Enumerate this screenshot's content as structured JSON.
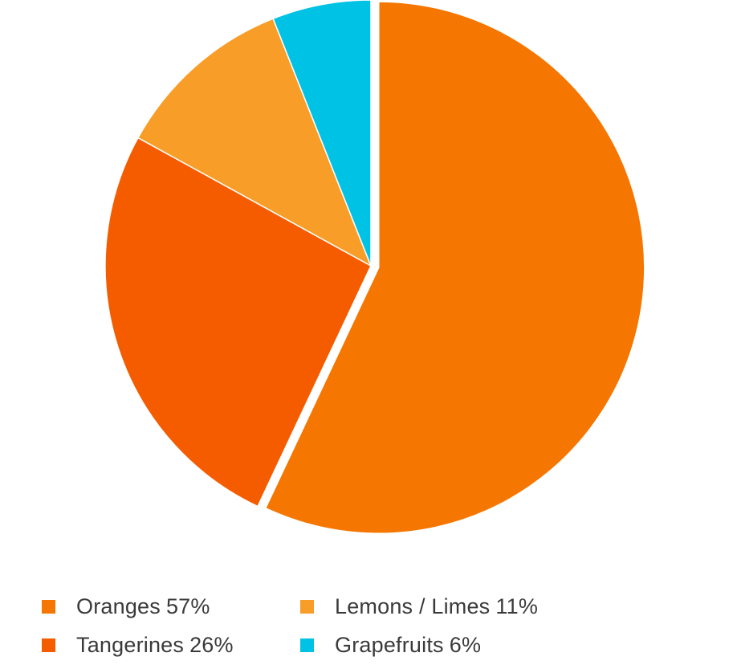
{
  "chart_data": {
    "type": "pie",
    "title": "",
    "slices": [
      {
        "label": "Oranges",
        "value": 57,
        "display": "57%",
        "color": "#F57600",
        "exploded": true
      },
      {
        "label": "Tangerines",
        "value": 26,
        "display": "26%",
        "color": "#F55C00",
        "exploded": false
      },
      {
        "label": "Lemons / Limes",
        "value": 11,
        "display": "11%",
        "color": "#F89D28",
        "exploded": false
      },
      {
        "label": "Grapefruits",
        "value": 6,
        "display": "6%",
        "color": "#00C2E5",
        "exploded": false
      }
    ],
    "legend": {
      "placement": "bottom",
      "columns": 2
    }
  }
}
